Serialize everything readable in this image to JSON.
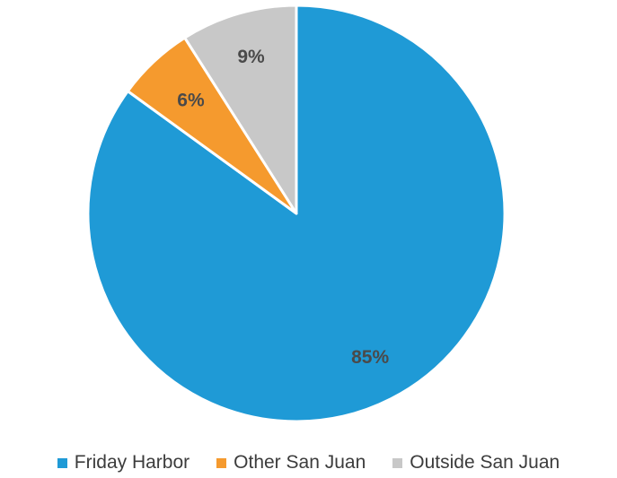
{
  "chart_data": {
    "type": "pie",
    "categories": [
      "Friday Harbor",
      "Other San Juan",
      "Outside San Juan"
    ],
    "values": [
      85,
      6,
      9
    ],
    "labels": [
      "85%",
      "6%",
      "9%"
    ],
    "colors": [
      "#1f9ad6",
      "#f59a2e",
      "#c8c8c8"
    ],
    "start": "12 o'clock",
    "direction": "clockwise",
    "legend": "bottom"
  }
}
